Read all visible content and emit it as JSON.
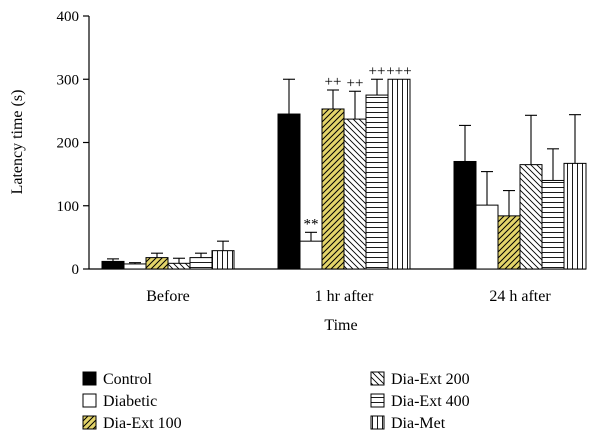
{
  "chart_data": {
    "type": "bar",
    "title": "",
    "xlabel": "Time",
    "ylabel": "Latency time (s)",
    "ylim": [
      0,
      400
    ],
    "yticks": [
      0,
      100,
      200,
      300,
      400
    ],
    "categories": [
      "Before",
      "1 hr after",
      "24 h after"
    ],
    "series": [
      {
        "name": "Control",
        "values": [
          12,
          245,
          170
        ],
        "errors": [
          4,
          55,
          57
        ],
        "pattern": "solid-black"
      },
      {
        "name": "Diabetic",
        "values": [
          8,
          44,
          101
        ],
        "errors": [
          2,
          14,
          53
        ],
        "pattern": "white"
      },
      {
        "name": "Dia-Ext 100",
        "values": [
          18,
          253,
          84
        ],
        "errors": [
          7,
          30,
          40
        ],
        "pattern": "yellow-diagonal"
      },
      {
        "name": "Dia-Ext 200",
        "values": [
          9,
          237,
          165
        ],
        "errors": [
          8,
          44,
          78
        ],
        "pattern": "back-diagonal"
      },
      {
        "name": "Dia-Ext 400",
        "values": [
          18,
          275,
          140
        ],
        "errors": [
          7,
          25,
          50
        ],
        "pattern": "horizontal"
      },
      {
        "name": "Dia-Met",
        "values": [
          29,
          300,
          167
        ],
        "errors": [
          15,
          0,
          77
        ],
        "pattern": "vertical"
      }
    ],
    "annotations": [
      {
        "text": "**",
        "category": 1,
        "series": 1
      },
      {
        "text": "++",
        "category": 1,
        "series": 2
      },
      {
        "text": "++",
        "category": 1,
        "series": 3
      },
      {
        "text": "++",
        "category": 1,
        "series": 4
      },
      {
        "text": "+++",
        "category": 1,
        "series": 5
      }
    ],
    "grid": false,
    "legend_position": "bottom"
  }
}
